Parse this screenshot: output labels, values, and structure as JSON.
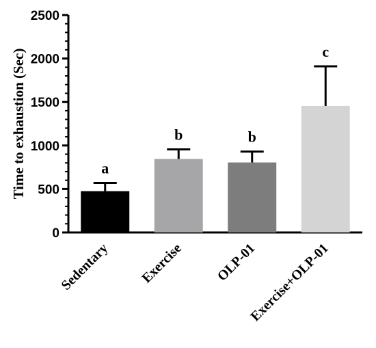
{
  "chart_data": {
    "type": "bar",
    "categories": [
      "Sedentary",
      "Exercise",
      "OLP-01",
      "Exercise+OLP-01"
    ],
    "values": [
      475,
      845,
      805,
      1455
    ],
    "errors": [
      95,
      110,
      125,
      455
    ],
    "significance": [
      "a",
      "b",
      "b",
      "c"
    ],
    "colors": [
      "#000000",
      "#a6a6a8",
      "#7d7d7d",
      "#d4d4d4"
    ],
    "title": "",
    "xlabel": "",
    "ylabel": "Time to exhaustion (Sec)",
    "ylim": [
      0,
      2500
    ],
    "yticks": [
      0,
      500,
      1000,
      1500,
      2000,
      2500
    ],
    "grid": false,
    "legend": "none"
  }
}
